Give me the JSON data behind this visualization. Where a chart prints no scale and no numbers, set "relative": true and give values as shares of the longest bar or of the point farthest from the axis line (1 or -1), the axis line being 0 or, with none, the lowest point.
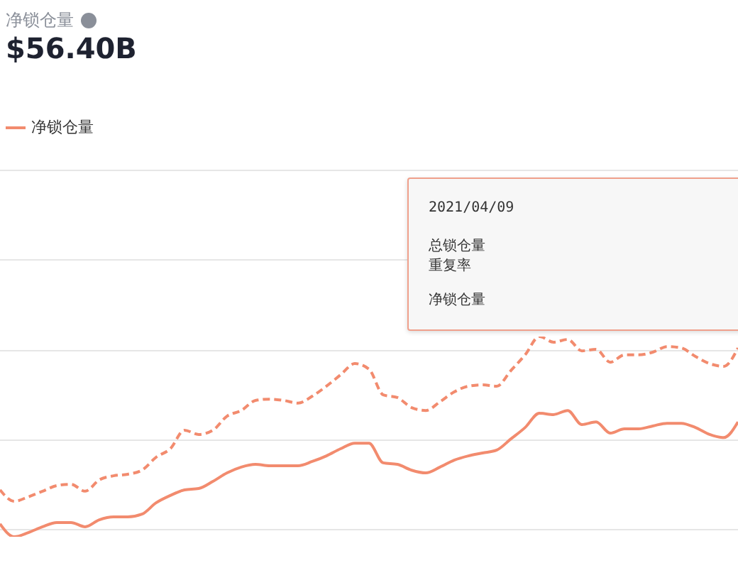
{
  "chart_data": {
    "type": "line",
    "title": "净锁仓量",
    "subtitle": "$56.40B",
    "relative": true,
    "grid": "y",
    "legend": "top left",
    "categories": [
      null,
      null,
      null,
      null,
      null,
      null,
      null,
      null,
      null,
      null,
      null,
      null,
      null,
      null,
      null,
      null,
      null,
      null,
      null,
      null,
      null,
      null,
      null,
      null,
      null,
      null,
      null,
      null,
      null,
      null,
      null,
      null,
      null,
      null,
      null,
      null,
      null,
      null,
      null,
      null,
      null,
      null,
      null,
      null,
      null,
      null,
      null,
      null,
      null,
      null,
      null,
      null,
      null
    ],
    "series": [
      {
        "color": "#f28b6e",
        "line_style": "dashed",
        "values": [
          0.206,
          0.147,
          0.17,
          0.199,
          0.228,
          0.235,
          0.199,
          0.258,
          0.279,
          0.287,
          0.308,
          0.375,
          0.419,
          0.515,
          0.493,
          0.515,
          0.588,
          0.617,
          0.669,
          0.676,
          0.669,
          0.655,
          0.691,
          0.743,
          0.802,
          0.86,
          0.831,
          0.698,
          0.684,
          0.632,
          0.617,
          0.662,
          0.713,
          0.743,
          0.75,
          0.743,
          0.824,
          0.905,
          1,
          0.971,
          0.985,
          0.926,
          0.934,
          0.867,
          0.905,
          0.905,
          0.919,
          0.948,
          0.941,
          0.897,
          0.86,
          0.846,
          0.941
        ]
      },
      {
        "name": "净锁仓量",
        "color": "#f28b6e",
        "line_style": "solid",
        "values": [
          0.03,
          -0.037,
          -0.015,
          0.015,
          0.037,
          0.037,
          0.015,
          0.051,
          0.066,
          0.066,
          0.08,
          0.139,
          0.177,
          0.206,
          0.213,
          0.25,
          0.294,
          0.324,
          0.338,
          0.331,
          0.331,
          0.331,
          0.353,
          0.382,
          0.419,
          0.448,
          0.448,
          0.346,
          0.338,
          0.308,
          0.294,
          0.324,
          0.36,
          0.382,
          0.397,
          0.412,
          0.47,
          0.529,
          0.603,
          0.596,
          0.617,
          0.544,
          0.558,
          0.5,
          0.522,
          0.522,
          0.537,
          0.551,
          0.551,
          0.529,
          0.493,
          0.477,
          0.558
        ]
      }
    ],
    "annotations": [
      "2021/04/09",
      "总锁仓量",
      "重复率",
      "净锁仓量"
    ]
  }
}
